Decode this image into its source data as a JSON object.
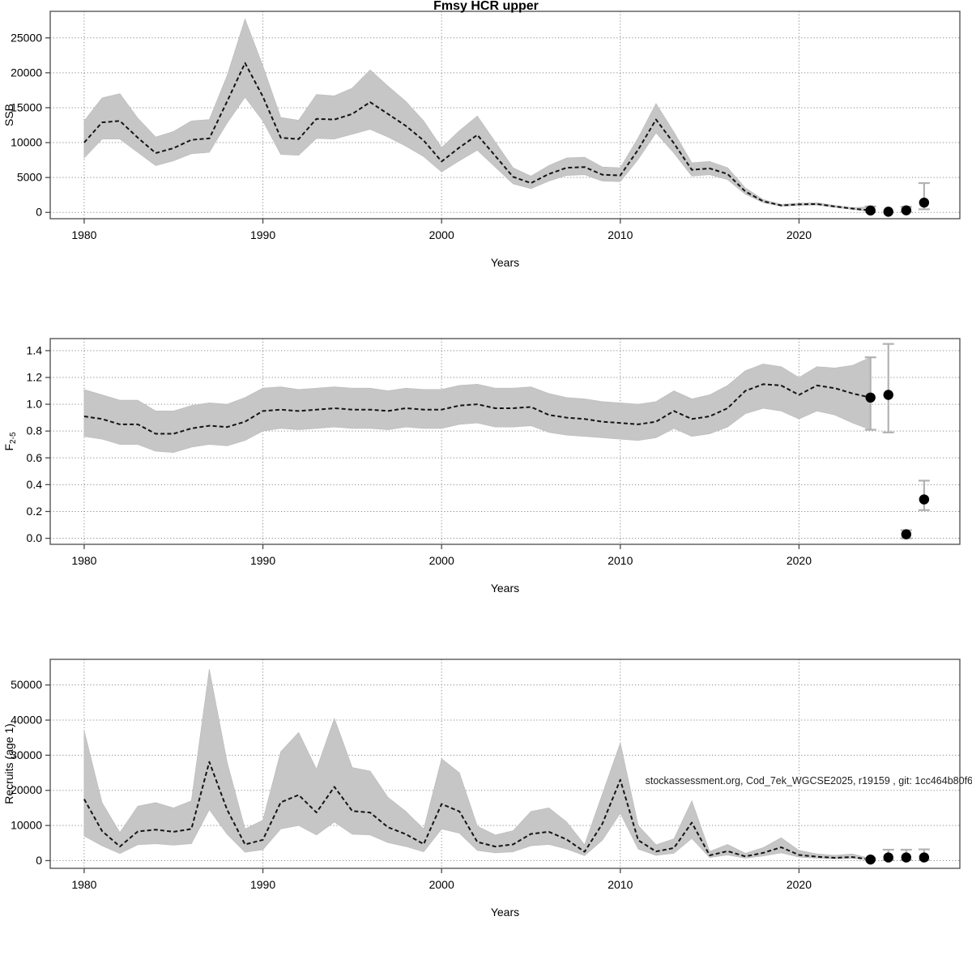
{
  "title": "Fmsy HCR upper",
  "watermark": "stockassessment.org, Cod_7ek_WGCSE2025, r19159 , git: 1cc464b80f6",
  "colors": {
    "background": "#ffffff",
    "band": "#c6c6c6",
    "line": "#141414",
    "grid": "#8a8a8a",
    "frame": "#4a4a4a",
    "errorbar": "#b2b2b2",
    "dot": "#000000",
    "text": "#000000"
  },
  "chart_data": [
    {
      "name": "ssb",
      "type": "area",
      "title": "Fmsy HCR upper",
      "ylabel": "SSB",
      "xlabel": "Years",
      "xlim": [
        1978.1,
        2029.0
      ],
      "ylim": [
        -900,
        28800
      ],
      "xtick_values": [
        1980,
        1990,
        2000,
        2010,
        2020
      ],
      "xtick_labels": [
        "1980",
        "1990",
        "2000",
        "2010",
        "2020"
      ],
      "ytick_values": [
        0,
        5000,
        10000,
        15000,
        20000,
        25000
      ],
      "ytick_labels": [
        "0",
        "5000",
        "10000",
        "15000",
        "20000",
        "25000"
      ],
      "years": [
        1980,
        1981,
        1982,
        1983,
        1984,
        1985,
        1986,
        1987,
        1988,
        1989,
        1990,
        1991,
        1992,
        1993,
        1994,
        1995,
        1996,
        1997,
        1998,
        1999,
        2000,
        2001,
        2002,
        2003,
        2004,
        2005,
        2006,
        2007,
        2008,
        2009,
        2010,
        2011,
        2012,
        2013,
        2014,
        2015,
        2016,
        2017,
        2018,
        2019,
        2020,
        2021,
        2022,
        2023,
        2024
      ],
      "values": [
        10000,
        12900,
        13100,
        10700,
        8500,
        9200,
        10400,
        10600,
        15900,
        21400,
        16600,
        10700,
        10500,
        13400,
        13300,
        14100,
        15800,
        14100,
        12400,
        10300,
        7300,
        9300,
        11100,
        8100,
        5100,
        4200,
        5500,
        6400,
        6500,
        5400,
        5300,
        9000,
        13300,
        9900,
        6100,
        6300,
        5500,
        3000,
        1600,
        1000,
        1150,
        1200,
        850,
        550,
        280
      ],
      "lower": [
        7800,
        10500,
        10500,
        8600,
        6700,
        7400,
        8400,
        8600,
        12800,
        16500,
        13100,
        8300,
        8200,
        10600,
        10500,
        11200,
        11900,
        10800,
        9500,
        8000,
        5800,
        7400,
        8900,
        6500,
        4100,
        3400,
        4500,
        5300,
        5400,
        4500,
        4400,
        7600,
        11400,
        8500,
        5200,
        5400,
        4700,
        2600,
        1400,
        880,
        1000,
        1050,
        720,
        430,
        120
      ],
      "upper": [
        13100,
        16400,
        17000,
        13500,
        10800,
        11600,
        13100,
        13300,
        19600,
        27700,
        21000,
        13600,
        13200,
        16900,
        16700,
        17800,
        20400,
        18100,
        15900,
        13100,
        9300,
        11700,
        13800,
        10100,
        6400,
        5200,
        6700,
        7800,
        7900,
        6500,
        6400,
        10700,
        15600,
        11500,
        7100,
        7300,
        6400,
        3500,
        1850,
        1150,
        1330,
        1400,
        1000,
        680,
        800
      ],
      "points": [
        {
          "x": 2024,
          "y": 280,
          "lo": 60,
          "hi": 850
        },
        {
          "x": 2025,
          "y": 100
        },
        {
          "x": 2026,
          "y": 300,
          "lo": 90,
          "hi": 800
        },
        {
          "x": 2027,
          "y": 1400,
          "lo": 450,
          "hi": 4200
        }
      ]
    },
    {
      "name": "f",
      "type": "area",
      "ylabel": "F",
      "ylabel_sub": "2-5",
      "xlabel": "Years",
      "xlim": [
        1978.1,
        2029.0
      ],
      "ylim": [
        -0.045,
        1.49
      ],
      "xtick_values": [
        1980,
        1990,
        2000,
        2010,
        2020
      ],
      "xtick_labels": [
        "1980",
        "1990",
        "2000",
        "2010",
        "2020"
      ],
      "ytick_values": [
        0.0,
        0.2,
        0.4,
        0.6,
        0.8,
        1.0,
        1.2,
        1.4
      ],
      "ytick_labels": [
        "0.0",
        "0.2",
        "0.4",
        "0.6",
        "0.8",
        "1.0",
        "1.2",
        "1.4"
      ],
      "years": [
        1980,
        1981,
        1982,
        1983,
        1984,
        1985,
        1986,
        1987,
        1988,
        1989,
        1990,
        1991,
        1992,
        1993,
        1994,
        1995,
        1996,
        1997,
        1998,
        1999,
        2000,
        2001,
        2002,
        2003,
        2004,
        2005,
        2006,
        2007,
        2008,
        2009,
        2010,
        2011,
        2012,
        2013,
        2014,
        2015,
        2016,
        2017,
        2018,
        2019,
        2020,
        2021,
        2022,
        2023,
        2024
      ],
      "values": [
        0.91,
        0.89,
        0.85,
        0.85,
        0.78,
        0.78,
        0.82,
        0.84,
        0.83,
        0.87,
        0.95,
        0.96,
        0.95,
        0.96,
        0.97,
        0.96,
        0.96,
        0.95,
        0.97,
        0.96,
        0.96,
        0.99,
        1.0,
        0.97,
        0.97,
        0.98,
        0.92,
        0.9,
        0.89,
        0.87,
        0.86,
        0.85,
        0.87,
        0.95,
        0.89,
        0.91,
        0.97,
        1.1,
        1.15,
        1.14,
        1.07,
        1.14,
        1.12,
        1.08,
        1.05
      ],
      "lower": [
        0.76,
        0.74,
        0.7,
        0.7,
        0.65,
        0.64,
        0.68,
        0.7,
        0.69,
        0.73,
        0.8,
        0.82,
        0.81,
        0.82,
        0.83,
        0.82,
        0.82,
        0.81,
        0.83,
        0.82,
        0.82,
        0.85,
        0.86,
        0.83,
        0.83,
        0.84,
        0.79,
        0.77,
        0.76,
        0.75,
        0.74,
        0.73,
        0.75,
        0.82,
        0.76,
        0.78,
        0.83,
        0.93,
        0.97,
        0.95,
        0.89,
        0.95,
        0.92,
        0.86,
        0.81
      ],
      "upper": [
        1.11,
        1.07,
        1.03,
        1.03,
        0.95,
        0.95,
        0.99,
        1.01,
        1.0,
        1.05,
        1.12,
        1.13,
        1.11,
        1.12,
        1.13,
        1.12,
        1.12,
        1.1,
        1.12,
        1.11,
        1.11,
        1.14,
        1.15,
        1.12,
        1.12,
        1.13,
        1.08,
        1.05,
        1.04,
        1.02,
        1.01,
        1.0,
        1.02,
        1.1,
        1.04,
        1.07,
        1.14,
        1.25,
        1.3,
        1.28,
        1.2,
        1.28,
        1.27,
        1.29,
        1.35
      ],
      "points": [
        {
          "x": 2024,
          "y": 1.05,
          "lo": 0.81,
          "hi": 1.35
        },
        {
          "x": 2025,
          "y": 1.07,
          "lo": 0.79,
          "hi": 1.45
        },
        {
          "x": 2026,
          "y": 0.03,
          "lo": 0.0,
          "hi": 0.06
        },
        {
          "x": 2027,
          "y": 0.29,
          "lo": 0.21,
          "hi": 0.43
        }
      ]
    },
    {
      "name": "recruits",
      "type": "area",
      "ylabel": "Recruits (age 1)",
      "xlabel": "Years",
      "annotation": "stockassessment.org, Cod_7ek_WGCSE2025, r19159 , git: 1cc464b80f6",
      "xlim": [
        1978.1,
        2029.0
      ],
      "ylim": [
        -2200,
        57300
      ],
      "xtick_values": [
        1980,
        1990,
        2000,
        2010,
        2020
      ],
      "xtick_labels": [
        "1980",
        "1990",
        "2000",
        "2010",
        "2020"
      ],
      "ytick_values": [
        0,
        10000,
        20000,
        30000,
        40000,
        50000
      ],
      "ytick_labels": [
        "0",
        "10000",
        "20000",
        "30000",
        "40000",
        "50000"
      ],
      "years": [
        1980,
        1981,
        1982,
        1983,
        1984,
        1985,
        1986,
        1987,
        1988,
        1989,
        1990,
        1991,
        1992,
        1993,
        1994,
        1995,
        1996,
        1997,
        1998,
        1999,
        2000,
        2001,
        2002,
        2003,
        2004,
        2005,
        2006,
        2007,
        2008,
        2009,
        2010,
        2011,
        2012,
        2013,
        2014,
        2015,
        2016,
        2017,
        2018,
        2019,
        2020,
        2021,
        2022,
        2023,
        2024
      ],
      "values": [
        17500,
        8400,
        4000,
        8300,
        8800,
        8200,
        9000,
        28100,
        14500,
        4600,
        5900,
        16600,
        18700,
        13700,
        21000,
        14100,
        13700,
        9500,
        7500,
        4700,
        16100,
        14000,
        5300,
        4000,
        4600,
        7600,
        8200,
        6000,
        2500,
        10500,
        23000,
        5800,
        2600,
        3600,
        10800,
        1500,
        2700,
        1200,
        2200,
        3800,
        1600,
        1100,
        800,
        1000,
        300
      ],
      "lower": [
        7000,
        4200,
        2000,
        4500,
        4800,
        4400,
        4800,
        14500,
        7500,
        2400,
        3100,
        9000,
        10000,
        7300,
        11000,
        7500,
        7300,
        5100,
        4000,
        2500,
        9000,
        7800,
        2900,
        2200,
        2500,
        4200,
        4600,
        3300,
        1400,
        5800,
        13500,
        3300,
        1500,
        2100,
        6300,
        900,
        1600,
        700,
        1300,
        2200,
        1000,
        700,
        500,
        650,
        150
      ],
      "upper": [
        37000,
        16500,
        8000,
        15500,
        16500,
        15000,
        17000,
        54500,
        28000,
        9000,
        11500,
        31000,
        36500,
        26000,
        40500,
        26500,
        25500,
        18000,
        14000,
        9000,
        29000,
        25000,
        9800,
        7300,
        8500,
        14000,
        15000,
        11000,
        4500,
        19000,
        33500,
        10000,
        4500,
        6200,
        17000,
        2600,
        4600,
        2100,
        3700,
        6500,
        2900,
        1900,
        1500,
        1900,
        600
      ],
      "points": [
        {
          "x": 2024,
          "y": 300,
          "lo": 100,
          "hi": 700
        },
        {
          "x": 2025,
          "y": 900,
          "lo": 150,
          "hi": 3100
        },
        {
          "x": 2026,
          "y": 900,
          "lo": 150,
          "hi": 3100
        },
        {
          "x": 2027,
          "y": 900,
          "lo": 150,
          "hi": 3200
        }
      ]
    }
  ]
}
